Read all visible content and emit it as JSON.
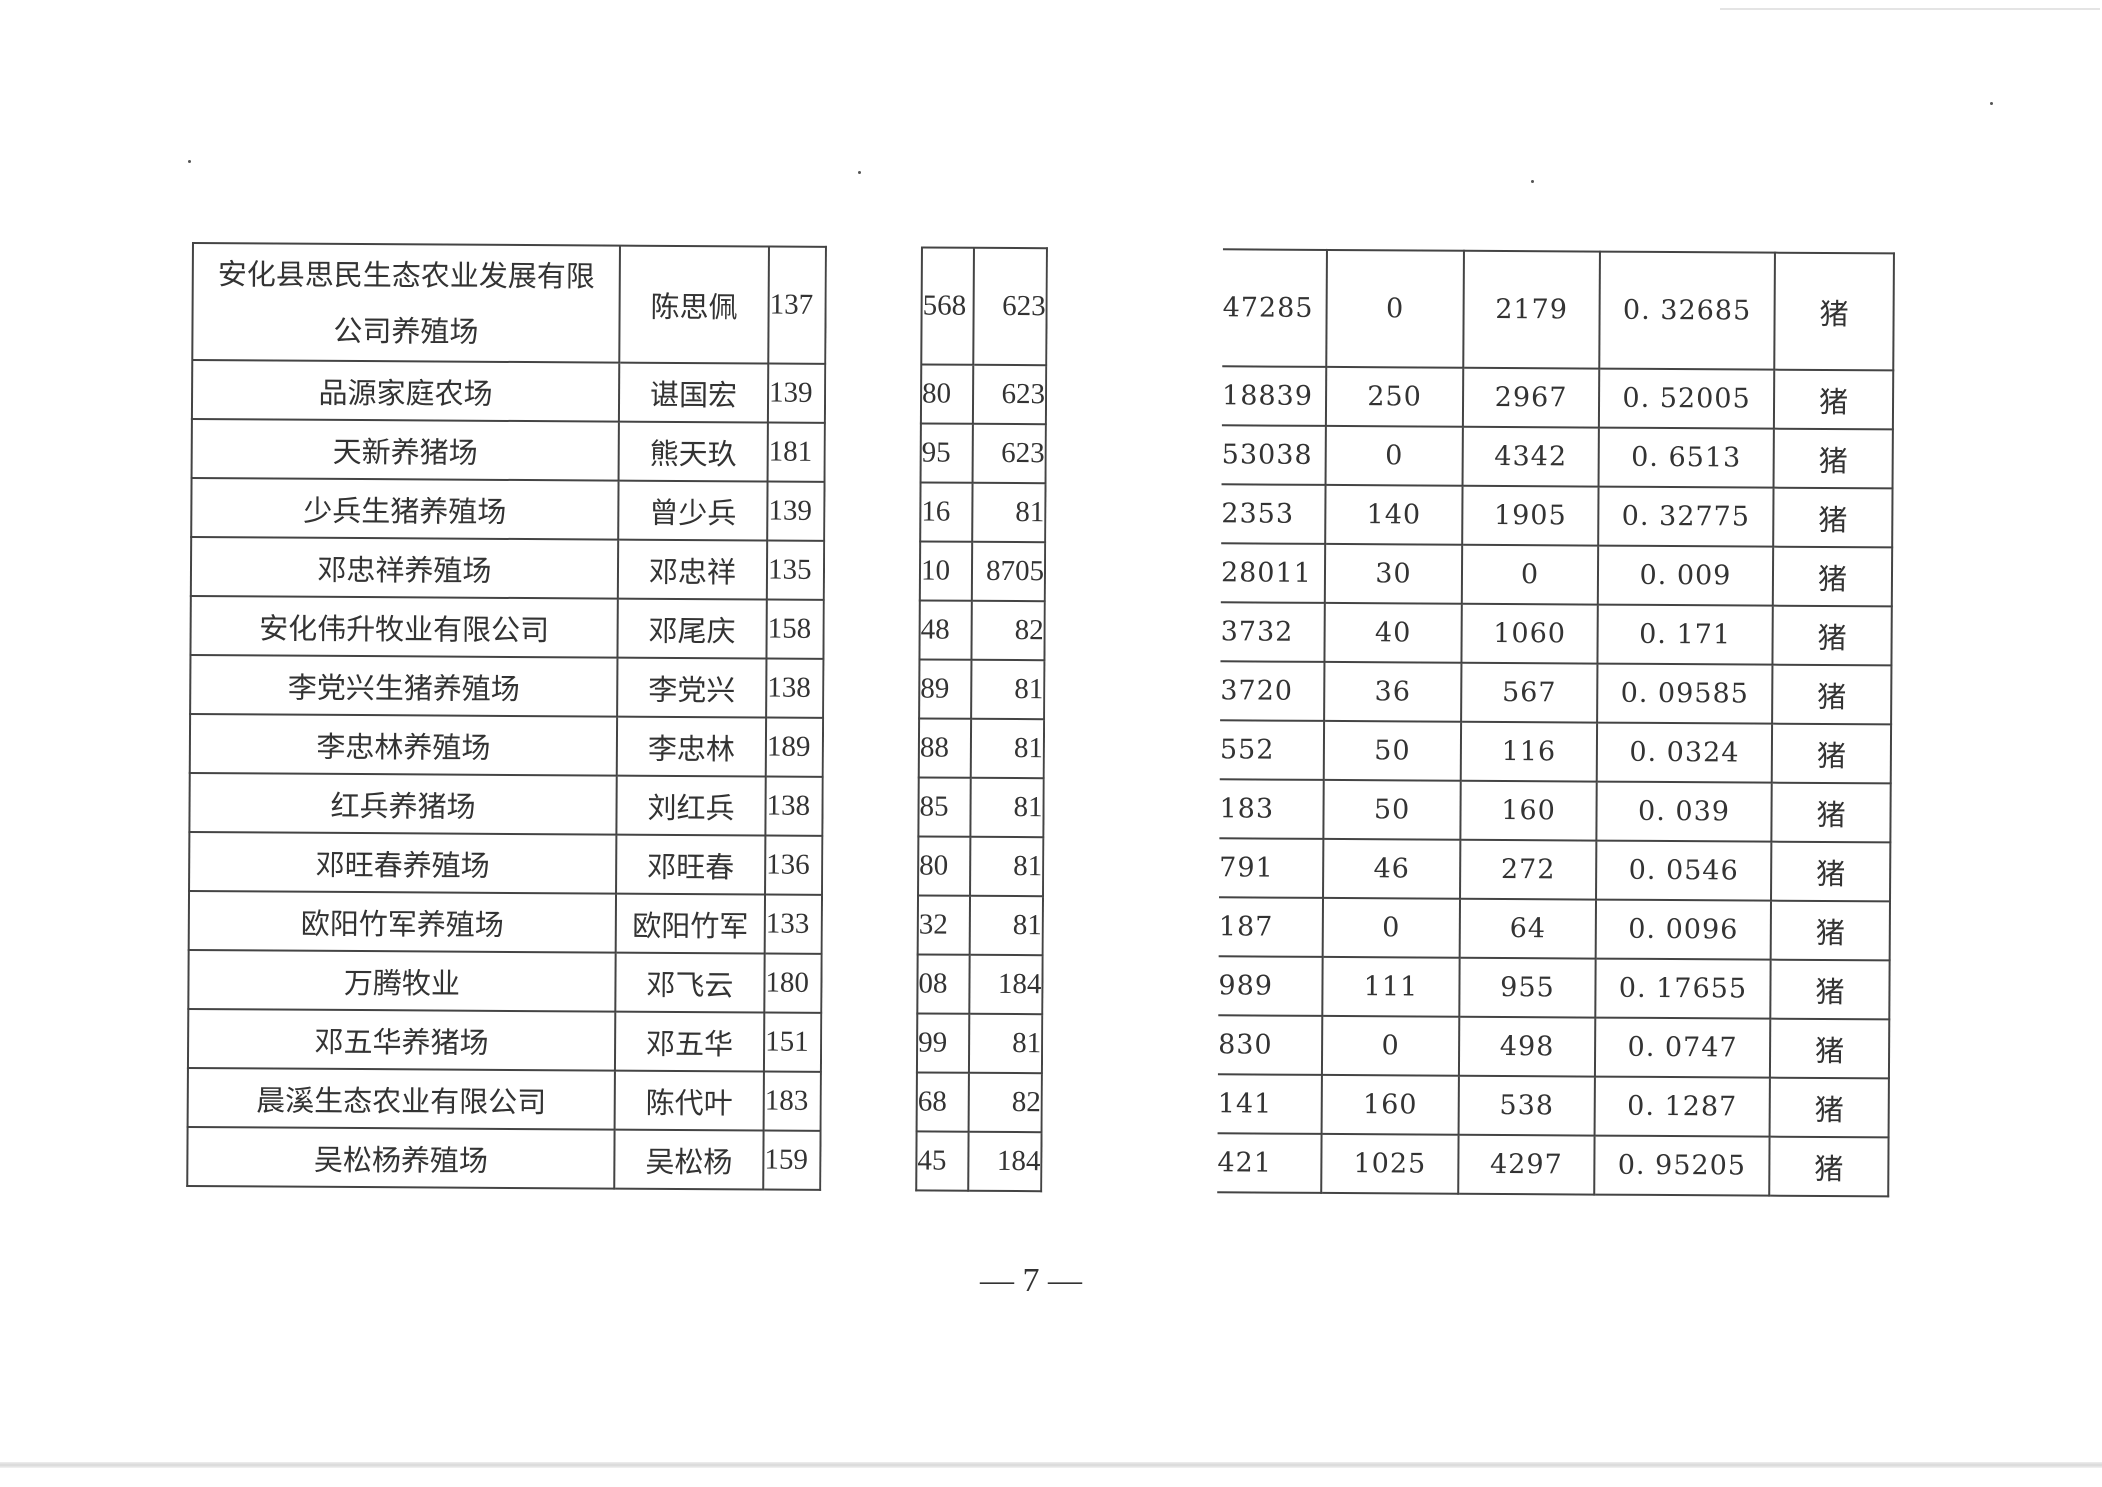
{
  "rows": [
    {
      "farm": "安化县思民生态农业发展有限公司养殖场",
      "farm_line1": "安化县思民生态农业发展有限",
      "farm_line2": "公司养殖场",
      "owner": "陈思佩",
      "c3": "137",
      "c4": "568",
      "c5": "623",
      "c6": "47285",
      "c7": "0",
      "c8": "2179",
      "c9": "0. 32685",
      "c10": "猪"
    },
    {
      "farm": "品源家庭农场",
      "owner": "谌国宏",
      "c3": "139",
      "c4": "80",
      "c5": "623",
      "c6": "18839",
      "c7": "250",
      "c8": "2967",
      "c9": "0. 52005",
      "c10": "猪"
    },
    {
      "farm": "天新养猪场",
      "owner": "熊天玖",
      "c3": "181",
      "c4": "95",
      "c5": "623",
      "c6": "53038",
      "c7": "0",
      "c8": "4342",
      "c9": "0. 6513",
      "c10": "猪"
    },
    {
      "farm": "少兵生猪养殖场",
      "owner": "曾少兵",
      "c3": "139",
      "c4": "16",
      "c5": "81",
      "c6": "2353",
      "c7": "140",
      "c8": "1905",
      "c9": "0. 32775",
      "c10": "猪"
    },
    {
      "farm": "邓忠祥养殖场",
      "owner": "邓忠祥",
      "c3": "135",
      "c4": "10",
      "c5": "8705",
      "c6": "28011",
      "c7": "30",
      "c8": "0",
      "c9": "0. 009",
      "c10": "猪"
    },
    {
      "farm": "安化伟升牧业有限公司",
      "owner": "邓尾庆",
      "c3": "158",
      "c4": "48",
      "c5": "82",
      "c6": "3732",
      "c7": "40",
      "c8": "1060",
      "c9": "0. 171",
      "c10": "猪"
    },
    {
      "farm": "李党兴生猪养殖场",
      "owner": "李党兴",
      "c3": "138",
      "c4": "89",
      "c5": "81",
      "c6": "3720",
      "c7": "36",
      "c8": "567",
      "c9": "0. 09585",
      "c10": "猪"
    },
    {
      "farm": "李忠林养殖场",
      "owner": "李忠林",
      "c3": "189",
      "c4": "88",
      "c5": "81",
      "c6": "552",
      "c7": "50",
      "c8": "116",
      "c9": "0. 0324",
      "c10": "猪"
    },
    {
      "farm": "红兵养猪场",
      "owner": "刘红兵",
      "c3": "138",
      "c4": "85",
      "c5": "81",
      "c6": "183",
      "c7": "50",
      "c8": "160",
      "c9": "0. 039",
      "c10": "猪"
    },
    {
      "farm": "邓旺春养殖场",
      "owner": "邓旺春",
      "c3": "136",
      "c4": "80",
      "c5": "81",
      "c6": "791",
      "c7": "46",
      "c8": "272",
      "c9": "0. 0546",
      "c10": "猪"
    },
    {
      "farm": "欧阳竹军养殖场",
      "owner": "欧阳竹军",
      "c3": "133",
      "c4": "32",
      "c5": "81",
      "c6": "187",
      "c7": "0",
      "c8": "64",
      "c9": "0. 0096",
      "c10": "猪"
    },
    {
      "farm": "万腾牧业",
      "owner": "邓飞云",
      "c3": "180",
      "c4": "08",
      "c5": "184",
      "c6": "989",
      "c7": "111",
      "c8": "955",
      "c9": "0. 17655",
      "c10": "猪"
    },
    {
      "farm": "邓五华养猪场",
      "owner": "邓五华",
      "c3": "151",
      "c4": "99",
      "c5": "81",
      "c6": "830",
      "c7": "0",
      "c8": "498",
      "c9": "0. 0747",
      "c10": "猪"
    },
    {
      "farm": "晨溪生态农业有限公司",
      "owner": "陈代叶",
      "c3": "183",
      "c4": "68",
      "c5": "82",
      "c6": "141",
      "c7": "160",
      "c8": "538",
      "c9": "0. 1287",
      "c10": "猪"
    },
    {
      "farm": "吴松杨养殖场",
      "owner": "吴松杨",
      "c3": "159",
      "c4": "45",
      "c5": "184",
      "c6": "421",
      "c7": "1025",
      "c8": "4297",
      "c9": "0. 95205",
      "c10": "猪"
    }
  ],
  "footer": {
    "page_number": "— 7 —"
  }
}
